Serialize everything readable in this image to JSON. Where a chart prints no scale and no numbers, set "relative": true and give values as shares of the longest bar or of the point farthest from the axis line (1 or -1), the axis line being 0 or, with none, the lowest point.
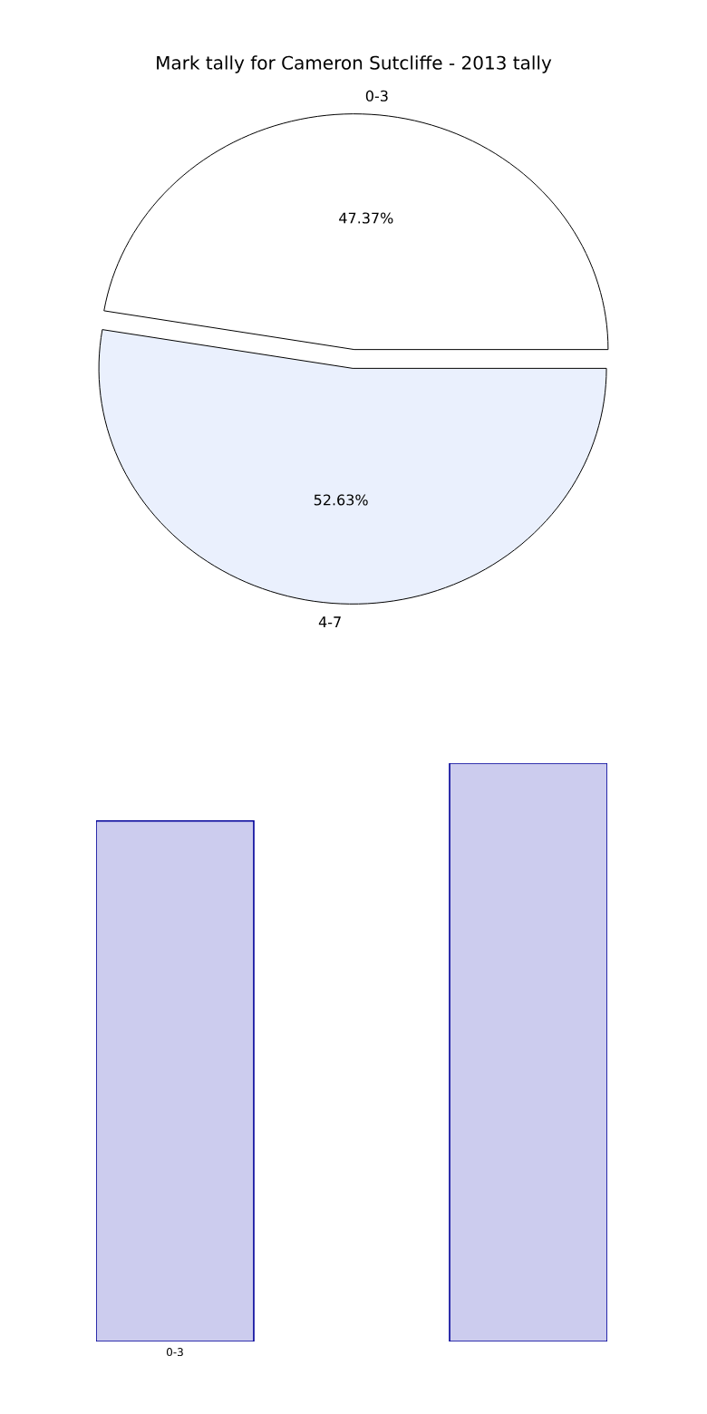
{
  "chart_data": [
    {
      "type": "pie",
      "title": "Mark tally for Cameron Sutcliffe - 2013 tally",
      "categories": [
        "0-3",
        "4-7"
      ],
      "values": [
        47.37,
        52.63
      ],
      "colors": [
        "#ffffff",
        "#eaf0fd"
      ],
      "value_labels": [
        "47.37%",
        "52.63%"
      ]
    },
    {
      "type": "bar",
      "categories": [
        "0-3",
        null
      ],
      "values": [
        0.9,
        1
      ],
      "color": "#ccccee",
      "relative": true
    }
  ]
}
